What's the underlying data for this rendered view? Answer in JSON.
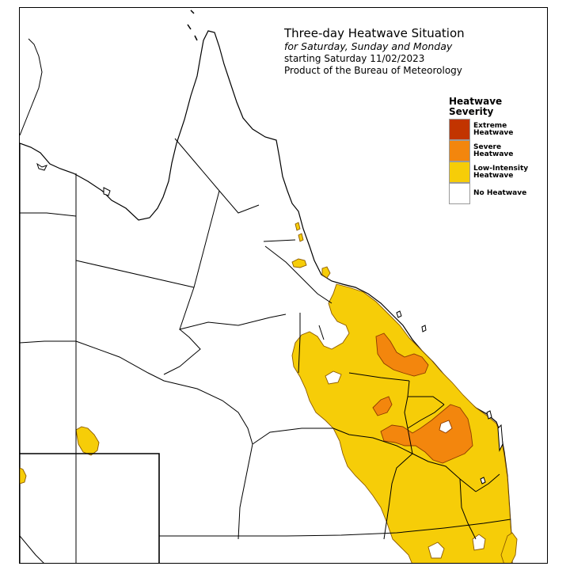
{
  "title": {
    "line1": "Three-day Heatwave Situation",
    "line2": "for Saturday, Sunday and Monday",
    "line3": "starting Saturday 11/02/2023",
    "line4": "Product of the Bureau of Meteorology"
  },
  "legend": {
    "title": "Heatwave Severity",
    "items": [
      {
        "label": "Extreme Heatwave",
        "color": "#c23400"
      },
      {
        "label": "Severe Heatwave",
        "color": "#f3860d"
      },
      {
        "label": "Low-Intensity Heatwave",
        "color": "#f6cd08"
      },
      {
        "label": "No Heatwave",
        "color": "#ffffff"
      }
    ]
  },
  "colors": {
    "boundary": "#000000",
    "outline": "#8b5a00"
  }
}
